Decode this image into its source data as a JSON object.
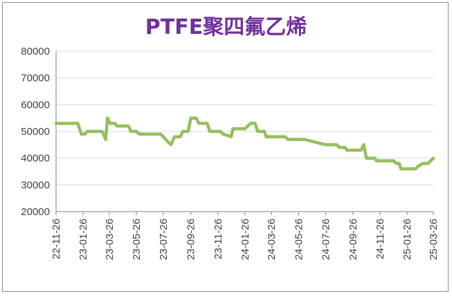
{
  "chart_data": {
    "type": "line",
    "title": "PTFE聚四氟乙烯",
    "xlabel": "",
    "ylabel": "",
    "ylim": [
      20000,
      80000
    ],
    "yticks": [
      "20000",
      "30000",
      "40000",
      "50000",
      "60000",
      "70000",
      "80000"
    ],
    "xticks": [
      "22-11-26",
      "23-01-26",
      "23-03-26",
      "23-05-26",
      "23-07-26",
      "23-09-26",
      "23-11-26",
      "24-01-26",
      "24-03-26",
      "24-05-26",
      "24-07-26",
      "24-09-26",
      "24-11-26",
      "25-01-26",
      "25-03-26"
    ],
    "grid": "horizontal",
    "legend": "none",
    "colors": {
      "line": "#92c05a",
      "title": "#7030a0",
      "grid": "#d9d9d9",
      "axis": "#7f7f7f"
    },
    "series": [
      {
        "values": [
          [
            "22-11-26",
            53000
          ],
          [
            "23-01-14",
            53000
          ],
          [
            "23-01-22",
            49000
          ],
          [
            "23-01-30",
            49000
          ],
          [
            "23-02-04",
            50000
          ],
          [
            "23-03-10",
            50000
          ],
          [
            "23-03-18",
            47000
          ],
          [
            "23-03-22",
            55000
          ],
          [
            "23-03-28",
            53000
          ],
          [
            "23-04-08",
            53000
          ],
          [
            "23-04-12",
            52000
          ],
          [
            "23-05-08",
            52000
          ],
          [
            "23-05-14",
            50000
          ],
          [
            "23-05-26",
            50000
          ],
          [
            "23-06-02",
            49000
          ],
          [
            "23-07-20",
            49000
          ],
          [
            "23-07-26",
            48000
          ],
          [
            "23-08-06",
            46000
          ],
          [
            "23-08-12",
            45000
          ],
          [
            "23-08-20",
            48000
          ],
          [
            "23-09-02",
            48000
          ],
          [
            "23-09-08",
            50000
          ],
          [
            "23-09-20",
            50000
          ],
          [
            "23-09-26",
            55000
          ],
          [
            "23-10-08",
            55000
          ],
          [
            "23-10-14",
            53000
          ],
          [
            "23-11-02",
            53000
          ],
          [
            "23-11-08",
            50000
          ],
          [
            "23-12-02",
            50000
          ],
          [
            "23-12-08",
            49000
          ],
          [
            "23-12-26",
            48000
          ],
          [
            "23-12-30",
            51000
          ],
          [
            "24-01-26",
            51000
          ],
          [
            "24-02-08",
            53000
          ],
          [
            "24-02-18",
            53000
          ],
          [
            "24-02-24",
            50000
          ],
          [
            "24-03-10",
            50000
          ],
          [
            "24-03-14",
            48000
          ],
          [
            "24-04-26",
            48000
          ],
          [
            "24-05-02",
            47000
          ],
          [
            "24-06-08",
            47000
          ],
          [
            "24-07-26",
            45000
          ],
          [
            "24-08-20",
            45000
          ],
          [
            "24-08-26",
            44000
          ],
          [
            "24-09-08",
            44000
          ],
          [
            "24-09-12",
            43000
          ],
          [
            "24-10-14",
            43000
          ],
          [
            "24-10-20",
            45000
          ],
          [
            "24-10-26",
            40000
          ],
          [
            "24-11-14",
            40000
          ],
          [
            "24-11-18",
            39000
          ],
          [
            "24-12-26",
            39000
          ],
          [
            "25-01-02",
            38000
          ],
          [
            "25-01-08",
            38000
          ],
          [
            "25-01-12",
            36000
          ],
          [
            "25-02-14",
            36000
          ],
          [
            "25-02-20",
            37000
          ],
          [
            "25-03-02",
            38000
          ],
          [
            "25-03-14",
            38000
          ],
          [
            "25-03-26",
            40000
          ]
        ]
      }
    ]
  }
}
